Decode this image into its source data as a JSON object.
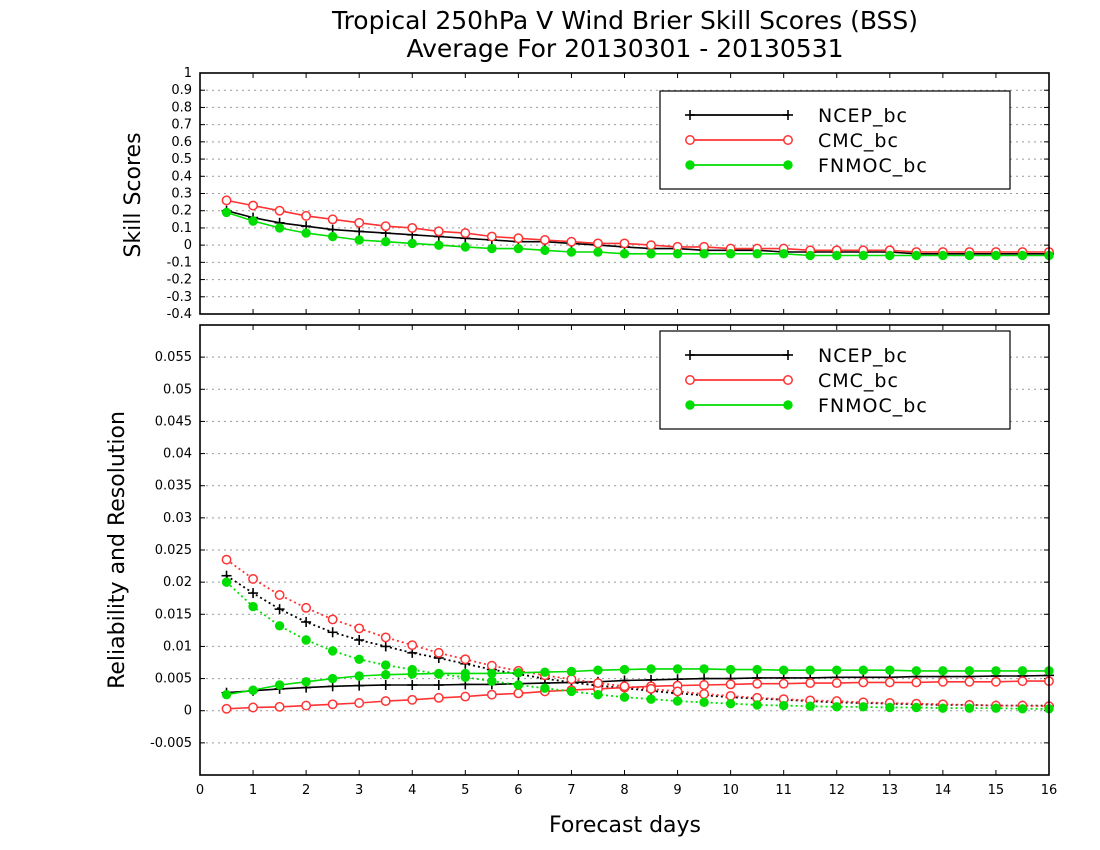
{
  "chart_data": [
    {
      "type": "line",
      "title": "Tropical 250hPa V Wind Brier Skill Scores (BSS)",
      "subtitle": "Average For 20130301 - 20130531",
      "xlabel": "Forecast days",
      "ylabel": "Skill Scores",
      "xlim": [
        0,
        16
      ],
      "ylim": [
        -0.4,
        1
      ],
      "x_ticks": [
        "0",
        "1",
        "2",
        "3",
        "4",
        "5",
        "6",
        "7",
        "8",
        "9",
        "10",
        "11",
        "12",
        "13",
        "14",
        "15",
        "16"
      ],
      "y_ticks": [
        "-0.4",
        "-0.3",
        "-0.2",
        "-0.1",
        "0",
        "0.1",
        "0.2",
        "0.3",
        "0.4",
        "0.5",
        "0.6",
        "0.7",
        "0.8",
        "0.9",
        "1"
      ],
      "grid": "horizontal dotted",
      "legend_position": "top-right",
      "x": [
        0.5,
        1,
        1.5,
        2,
        2.5,
        3,
        3.5,
        4,
        4.5,
        5,
        5.5,
        6,
        6.5,
        7,
        7.5,
        8,
        8.5,
        9,
        9.5,
        10,
        10.5,
        11,
        11.5,
        12,
        12.5,
        13,
        13.5,
        14,
        14.5,
        15,
        15.5,
        16
      ],
      "series": [
        {
          "name": "NCEP_bc",
          "color": "#000000",
          "marker": "plus",
          "values": [
            0.2,
            0.16,
            0.13,
            0.11,
            0.09,
            0.08,
            0.07,
            0.06,
            0.05,
            0.04,
            0.03,
            0.02,
            0.02,
            0.01,
            0.0,
            -0.01,
            -0.02,
            -0.02,
            -0.03,
            -0.03,
            -0.03,
            -0.04,
            -0.04,
            -0.04,
            -0.04,
            -0.04,
            -0.05,
            -0.05,
            -0.05,
            -0.05,
            -0.05,
            -0.05
          ]
        },
        {
          "name": "CMC_bc",
          "color": "#ff3333",
          "marker": "open-circle",
          "values": [
            0.26,
            0.23,
            0.2,
            0.17,
            0.15,
            0.13,
            0.11,
            0.1,
            0.08,
            0.07,
            0.05,
            0.04,
            0.03,
            0.02,
            0.01,
            0.01,
            0.0,
            -0.01,
            -0.01,
            -0.02,
            -0.02,
            -0.02,
            -0.03,
            -0.03,
            -0.03,
            -0.03,
            -0.04,
            -0.04,
            -0.04,
            -0.04,
            -0.04,
            -0.04
          ]
        },
        {
          "name": "FNMOC_bc",
          "color": "#00dd00",
          "marker": "filled-circle",
          "values": [
            0.19,
            0.14,
            0.1,
            0.07,
            0.05,
            0.03,
            0.02,
            0.01,
            0.0,
            -0.01,
            -0.02,
            -0.02,
            -0.03,
            -0.04,
            -0.04,
            -0.05,
            -0.05,
            -0.05,
            -0.05,
            -0.05,
            -0.05,
            -0.05,
            -0.06,
            -0.06,
            -0.06,
            -0.06,
            -0.06,
            -0.06,
            -0.06,
            -0.06,
            -0.06,
            -0.06
          ]
        }
      ]
    },
    {
      "type": "line",
      "xlabel": "Forecast days",
      "ylabel": "Reliability and Resolution",
      "xlim": [
        0,
        16
      ],
      "ylim": [
        -0.01,
        0.06
      ],
      "x_ticks": [
        "0",
        "1",
        "2",
        "3",
        "4",
        "5",
        "6",
        "7",
        "8",
        "9",
        "10",
        "11",
        "12",
        "13",
        "14",
        "15",
        "16"
      ],
      "y_ticks": [
        "-0.005",
        "0",
        "0.005",
        "0.01",
        "0.015",
        "0.02",
        "0.025",
        "0.03",
        "0.035",
        "0.04",
        "0.045",
        "0.05",
        "0.055"
      ],
      "grid": "horizontal dotted",
      "legend_position": "top-right",
      "x": [
        0.5,
        1,
        1.5,
        2,
        2.5,
        3,
        3.5,
        4,
        4.5,
        5,
        5.5,
        6,
        6.5,
        7,
        7.5,
        8,
        8.5,
        9,
        9.5,
        10,
        10.5,
        11,
        11.5,
        12,
        12.5,
        13,
        13.5,
        14,
        14.5,
        15,
        15.5,
        16
      ],
      "series": [
        {
          "name": "NCEP_bc",
          "color": "#000000",
          "marker": "plus",
          "values": [
            0.0028,
            0.0031,
            0.0034,
            0.0036,
            0.0038,
            0.0039,
            0.004,
            0.004,
            0.004,
            0.0041,
            0.0041,
            0.0042,
            0.0043,
            0.0044,
            0.0045,
            0.0047,
            0.0048,
            0.0049,
            0.005,
            0.005,
            0.0051,
            0.0051,
            0.0051,
            0.0052,
            0.0052,
            0.0052,
            0.0053,
            0.0053,
            0.0053,
            0.0054,
            0.0054,
            0.0055
          ]
        },
        {
          "name": "NCEP_bc",
          "color": "#000000",
          "marker": "plus",
          "style": "dotted",
          "values": [
            0.021,
            0.0183,
            0.0158,
            0.0138,
            0.0122,
            0.011,
            0.01,
            0.009,
            0.0082,
            0.0073,
            0.0064,
            0.0057,
            0.005,
            0.0044,
            0.0039,
            0.0035,
            0.0031,
            0.0027,
            0.0024,
            0.0021,
            0.0019,
            0.0017,
            0.0015,
            0.0013,
            0.0012,
            0.0011,
            0.001,
            0.0009,
            0.0009,
            0.0008,
            0.0008,
            0.0008
          ]
        },
        {
          "name": "CMC_bc",
          "color": "#ff3333",
          "marker": "open-circle",
          "values": [
            0.0003,
            0.0005,
            0.0006,
            0.0008,
            0.001,
            0.0012,
            0.0015,
            0.0017,
            0.002,
            0.0022,
            0.0025,
            0.0027,
            0.003,
            0.0032,
            0.0034,
            0.0036,
            0.0038,
            0.0039,
            0.004,
            0.0041,
            0.0042,
            0.0042,
            0.0043,
            0.0043,
            0.0044,
            0.0044,
            0.0044,
            0.0045,
            0.0045,
            0.0045,
            0.0046,
            0.0046
          ]
        },
        {
          "name": "CMC_bc",
          "color": "#ff3333",
          "marker": "open-circle",
          "style": "dotted",
          "values": [
            0.0235,
            0.0205,
            0.018,
            0.016,
            0.0142,
            0.0128,
            0.0114,
            0.0102,
            0.009,
            0.008,
            0.007,
            0.0062,
            0.0055,
            0.0049,
            0.0043,
            0.0038,
            0.0034,
            0.003,
            0.0026,
            0.0023,
            0.002,
            0.0018,
            0.0016,
            0.0015,
            0.0013,
            0.0012,
            0.0011,
            0.001,
            0.0009,
            0.0008,
            0.0008,
            0.0007
          ]
        },
        {
          "name": "FNMOC_bc",
          "color": "#00dd00",
          "marker": "filled-circle",
          "values": [
            0.0025,
            0.0032,
            0.004,
            0.0045,
            0.005,
            0.0054,
            0.0056,
            0.0057,
            0.0058,
            0.0058,
            0.0058,
            0.0059,
            0.006,
            0.0061,
            0.0063,
            0.0064,
            0.0065,
            0.0065,
            0.0065,
            0.0064,
            0.0064,
            0.0063,
            0.0063,
            0.0063,
            0.0063,
            0.0063,
            0.0062,
            0.0062,
            0.0062,
            0.0062,
            0.0062,
            0.0062
          ]
        },
        {
          "name": "FNMOC_bc",
          "color": "#00dd00",
          "marker": "filled-circle",
          "style": "dotted",
          "values": [
            0.02,
            0.0162,
            0.0132,
            0.011,
            0.0093,
            0.008,
            0.0071,
            0.0064,
            0.0057,
            0.0052,
            0.0046,
            0.004,
            0.0035,
            0.003,
            0.0025,
            0.0021,
            0.0018,
            0.0015,
            0.0013,
            0.0011,
            0.0009,
            0.0008,
            0.0007,
            0.0006,
            0.0006,
            0.0005,
            0.0005,
            0.0004,
            0.0004,
            0.0004,
            0.0003,
            0.0003
          ]
        }
      ]
    }
  ],
  "legend": [
    {
      "name": "NCEP_bc",
      "color": "#000000",
      "marker": "plus"
    },
    {
      "name": "CMC_bc",
      "color": "#ff3333",
      "marker": "open-circle"
    },
    {
      "name": "FNMOC_bc",
      "color": "#00dd00",
      "marker": "filled-circle"
    }
  ]
}
